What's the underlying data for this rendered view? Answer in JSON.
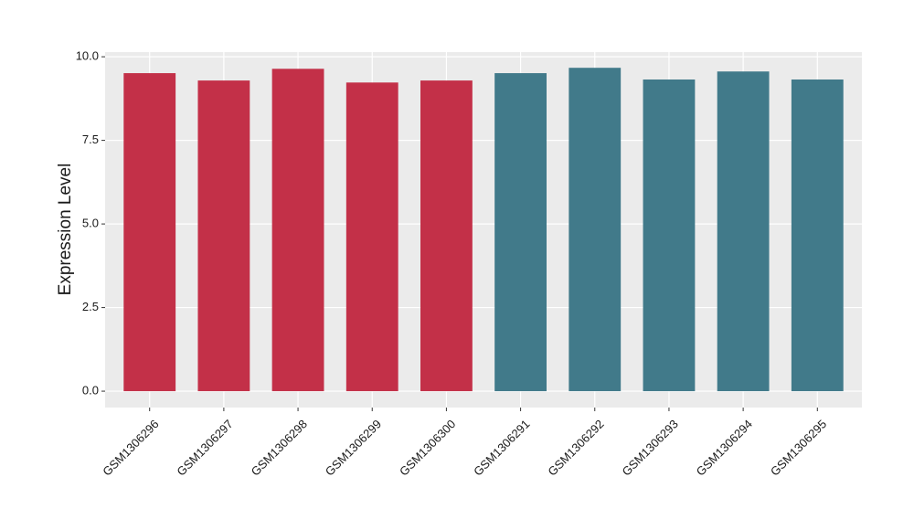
{
  "chart_data": {
    "type": "bar",
    "y_label": "Expression Level",
    "categories": [
      "GSM1306296",
      "GSM1306297",
      "GSM1306298",
      "GSM1306299",
      "GSM1306300",
      "GSM1306291",
      "GSM1306292",
      "GSM1306293",
      "GSM1306294",
      "GSM1306295"
    ],
    "values": [
      9.51,
      9.29,
      9.64,
      9.23,
      9.29,
      9.51,
      9.67,
      9.32,
      9.56,
      9.32
    ],
    "colors": [
      "#c33048",
      "#c33048",
      "#c33048",
      "#c33048",
      "#c33048",
      "#417a8a",
      "#417a8a",
      "#417a8a",
      "#417a8a",
      "#417a8a"
    ],
    "ylim": [
      -0.49,
      10.14
    ],
    "yticks": [
      {
        "value": 0,
        "label": "0.0"
      },
      {
        "value": 2.5,
        "label": "2.5"
      },
      {
        "value": 5,
        "label": "5.0"
      },
      {
        "value": 7.5,
        "label": "7.5"
      },
      {
        "value": 10,
        "label": "10.0"
      }
    ],
    "grid": true
  }
}
